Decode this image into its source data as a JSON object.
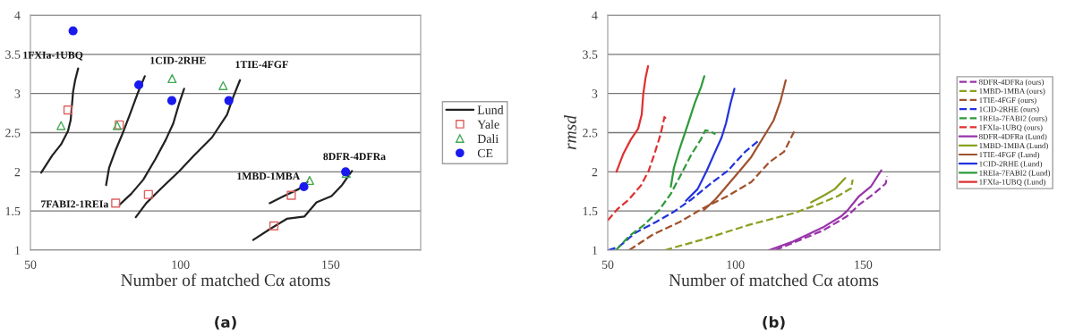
{
  "chart_data": [
    {
      "type": "line",
      "xlabel": "Number of matched Cα atoms",
      "xlim": [
        50,
        180
      ],
      "xticks": [
        50,
        100,
        150
      ],
      "ylim": [
        1,
        4
      ],
      "yticks": [
        1,
        1.5,
        2,
        2.5,
        3,
        3.5,
        4
      ],
      "grid": "y",
      "legend": "right",
      "annotations": [
        {
          "text": "1FXIa-1UBQ",
          "x": 65.9,
          "y": 3.32
        },
        {
          "text": "1CID-2RHE",
          "x": 88.1,
          "y": 3.22
        },
        {
          "text": "1TIE-4FGF",
          "x": 119.8,
          "y": 3.17
        },
        {
          "text": "7FABI2-1REIa",
          "x": 75.2,
          "y": 1.83
        },
        {
          "text": "1MBD-1MBA",
          "x": 142.3,
          "y": 1.87
        },
        {
          "text": "8DFR-4DFRa",
          "x": 157.1,
          "y": 2.01
        },
        "(a)"
      ],
      "series": [
        {
          "name": "Lund",
          "type": "line",
          "color": "#222222",
          "x": [
            53.6,
            57.3,
            60.2,
            62.5,
            63.4,
            63.9,
            64.2,
            64.9,
            65.9
          ],
          "values": [
            1.99,
            2.21,
            2.35,
            2.52,
            2.66,
            2.88,
            3.02,
            3.17,
            3.32
          ]
        },
        {
          "type": "line",
          "color": "#222222",
          "x": [
            75.2,
            76.2,
            78.2,
            80.6,
            83.1,
            85.6,
            88.1
          ],
          "values": [
            1.83,
            2.05,
            2.26,
            2.48,
            2.73,
            2.99,
            3.22
          ]
        },
        {
          "type": "line",
          "color": "#222222",
          "x": [
            79.7,
            83.6,
            87.6,
            91.6,
            95.1,
            97.6,
            99.6,
            101.2
          ],
          "values": [
            1.58,
            1.72,
            1.9,
            2.16,
            2.41,
            2.62,
            2.88,
            3.06
          ]
        },
        {
          "type": "line",
          "color": "#222222",
          "x": [
            85.1,
            88.6,
            93.6,
            99.6,
            104.5,
            110.5,
            115.5,
            117.5,
            119.8
          ],
          "values": [
            1.42,
            1.6,
            1.79,
            2.01,
            2.21,
            2.44,
            2.73,
            2.95,
            3.17
          ]
        },
        {
          "type": "line",
          "color": "#222222",
          "x": [
            129.7,
            134.4,
            139.4,
            142.3
          ],
          "values": [
            1.6,
            1.69,
            1.78,
            1.87
          ]
        },
        {
          "type": "line",
          "color": "#222222",
          "x": [
            124.2,
            129.4,
            135.4,
            141.3,
            145.3,
            150.3,
            153.8,
            157.1
          ],
          "values": [
            1.13,
            1.26,
            1.4,
            1.43,
            1.61,
            1.69,
            1.83,
            2.01
          ]
        },
        {
          "name": "Yale",
          "type": "scatter",
          "marker": "square",
          "color": "#e06060",
          "x": [
            62.5,
            79.6,
            78.4,
            89.3,
            136.9,
            131.1
          ],
          "values": [
            2.79,
            2.6,
            1.6,
            1.71,
            1.7,
            1.31
          ]
        },
        {
          "name": "Dali",
          "type": "scatter",
          "marker": "triangle",
          "color": "#44aa55",
          "x": [
            60.2,
            78.9,
            97.2,
            114.2,
            143,
            155.2
          ],
          "values": [
            2.59,
            2.59,
            3.19,
            3.1,
            1.89,
            1.98
          ]
        },
        {
          "name": "CE",
          "type": "scatter",
          "marker": "circle",
          "color": "#1a1aee",
          "x": [
            64.2,
            86.1,
            97.1,
            116.1,
            141.1,
            155
          ],
          "values": [
            3.8,
            3.11,
            2.91,
            2.91,
            1.81,
            2.0
          ]
        }
      ]
    },
    {
      "type": "line",
      "xlabel": "Number of matched Cα atoms",
      "ylabel": "rmsd",
      "xlim": [
        50,
        180
      ],
      "xticks": [
        50,
        100,
        150
      ],
      "ylim": [
        1,
        4
      ],
      "yticks": [
        1,
        1.5,
        2,
        2.5,
        3,
        3.5,
        4
      ],
      "grid": "y",
      "legend": "right",
      "annotations": [
        "(b)"
      ],
      "series": [
        {
          "name": "8DFR-4DFRa (ours)",
          "line_style": "dashed",
          "color": "#9933aa",
          "x": [
            115.6,
            134.2,
            143.6,
            148.4,
            154.2,
            158.8,
            159.4
          ],
          "values": [
            1.0,
            1.25,
            1.43,
            1.58,
            1.72,
            1.85,
            1.94
          ]
        },
        {
          "name": "1MBD-1MBA (ours)",
          "line_style": "dashed",
          "color": "#88a020",
          "x": [
            72.4,
            87.6,
            105.1,
            122.6,
            131.9,
            140.1,
            145.3,
            145.9
          ],
          "values": [
            1.0,
            1.14,
            1.32,
            1.47,
            1.58,
            1.69,
            1.79,
            1.9
          ]
        },
        {
          "name": "1TIE-4FGF (ours)",
          "line_style": "dashed",
          "color": "#a0522d",
          "x": [
            58.4,
            67.7,
            78.2,
            87.6,
            96.9,
            106.2,
            113.2,
            119.1,
            123.2
          ],
          "values": [
            1.0,
            1.2,
            1.36,
            1.54,
            1.69,
            1.87,
            2.12,
            2.26,
            2.53
          ]
        },
        {
          "name": "1CID-2RHE (ours)",
          "line_style": "dashed",
          "color": "#2233dd",
          "x": [
            50.2,
            54.3,
            60.7,
            68.9,
            75.9,
            82.9,
            91.1,
            96.9,
            103.9,
            109.5
          ],
          "values": [
            1.0,
            1.04,
            1.22,
            1.36,
            1.49,
            1.65,
            1.87,
            2.01,
            2.26,
            2.41
          ]
        },
        {
          "name": "1REIa-7FABI2 (ours)",
          "line_style": "dashed",
          "color": "#2e9a3a",
          "x": [
            53.2,
            58.4,
            64.2,
            70.1,
            74.7,
            79.4,
            82.9,
            86.4,
            88.2,
            89.9,
            92.2
          ],
          "values": [
            1.0,
            1.18,
            1.32,
            1.51,
            1.72,
            2.01,
            2.23,
            2.41,
            2.53,
            2.52,
            2.48
          ]
        },
        {
          "name": "1FXIa-1UBQ (ours)",
          "line_style": "dashed",
          "color": "#e03030",
          "x": [
            50,
            53.7,
            58.4,
            63.1,
            66,
            68.3,
            70.7,
            72.2,
            73.3
          ],
          "values": [
            1.38,
            1.52,
            1.65,
            1.83,
            2.01,
            2.23,
            2.48,
            2.7,
            2.66
          ]
        },
        {
          "name": "8DFR-4DFRa (Lund)",
          "line_style": "solid",
          "color": "#9933aa",
          "x": [
            113.2,
            122.6,
            134.2,
            141.3,
            143.7,
            148.4,
            153,
            157.1
          ],
          "values": [
            1.0,
            1.11,
            1.29,
            1.43,
            1.5,
            1.69,
            1.81,
            2.02
          ]
        },
        {
          "name": "1MBD-1MBA (Lund)",
          "line_style": "solid",
          "color": "#88a020",
          "x": [
            129.6,
            134.2,
            138.9,
            143
          ],
          "values": [
            1.61,
            1.69,
            1.78,
            1.92
          ]
        },
        {
          "name": "1TIE-4FGF (Lund)",
          "line_style": "solid",
          "color": "#a0522d",
          "x": [
            87.6,
            92.2,
            96.9,
            101.6,
            106.2,
            110.9,
            115,
            117.7,
            119.7
          ],
          "values": [
            1.51,
            1.65,
            1.83,
            2.01,
            2.19,
            2.44,
            2.66,
            2.91,
            3.17
          ]
        },
        {
          "name": "1CID-2RHE (Lund)",
          "line_style": "solid",
          "color": "#2233dd",
          "x": [
            80.6,
            85.2,
            88.7,
            91.7,
            94.6,
            96.3,
            98.1,
            99.6
          ],
          "values": [
            1.63,
            1.78,
            2.01,
            2.23,
            2.44,
            2.62,
            2.88,
            3.06
          ]
        },
        {
          "name": "1REIa-7FABI2 (Lund)",
          "line_style": "solid",
          "color": "#2e9a3a",
          "x": [
            74.7,
            75.9,
            78.2,
            81.2,
            84.1,
            86.6,
            87.8
          ],
          "values": [
            1.81,
            2.05,
            2.3,
            2.59,
            2.88,
            3.09,
            3.22
          ]
        },
        {
          "name": "1FXIa-1UBQ (Lund)",
          "line_style": "solid",
          "color": "#e03030",
          "x": [
            53.4,
            56.1,
            59,
            61.9,
            63.3,
            63.9,
            64.8,
            65.8
          ],
          "values": [
            2.0,
            2.23,
            2.41,
            2.55,
            2.73,
            2.99,
            3.2,
            3.35
          ]
        }
      ]
    }
  ]
}
